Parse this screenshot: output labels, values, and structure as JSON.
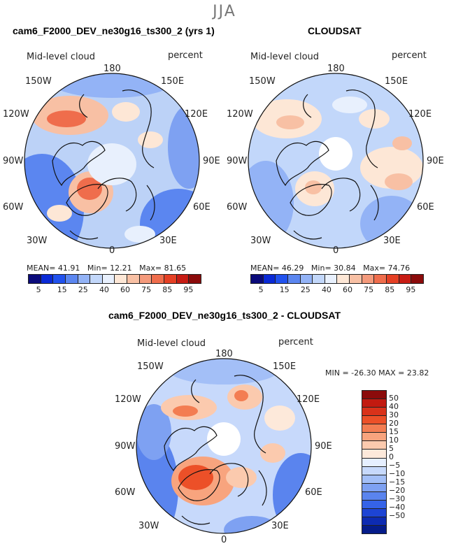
{
  "figure": {
    "season": "JJA"
  },
  "panels": [
    {
      "title": "cam6_F2000_DEV_ne30g16_ts300_2 (yrs 1)",
      "variable": "Mid-level cloud",
      "units": "percent",
      "stats": {
        "mean_label": "MEAN=",
        "mean": "41.91",
        "min_label": "Min=",
        "min": "12.21",
        "max_label": "Max=",
        "max": "81.65"
      },
      "lon_labels": {
        "n": "180",
        "nw": "150W",
        "ne": "150E",
        "wnw": "120W",
        "ene": "120E",
        "w": "90W",
        "e": "90E",
        "wsw": "60W",
        "ese": "60E",
        "sw": "30W",
        "se": "30E",
        "s": "0"
      },
      "polar_hole": false
    },
    {
      "title": "CLOUDSAT",
      "variable": "Mid-level cloud",
      "units": "percent",
      "stats": {
        "mean_label": "MEAN=",
        "mean": "46.29",
        "min_label": "Min=",
        "min": "30.84",
        "max_label": "Max=",
        "max": "74.76"
      },
      "lon_labels": {
        "n": "180",
        "nw": "150W",
        "ne": "150E",
        "wnw": "120W",
        "ene": "120E",
        "w": "90W",
        "e": "90E",
        "wsw": "60W",
        "ese": "60E",
        "sw": "30W",
        "se": "30E",
        "s": "0"
      },
      "polar_hole": true
    },
    {
      "title": "cam6_F2000_DEV_ne30g16_ts300_2 - CLOUDSAT",
      "variable": "Mid-level cloud",
      "units": "percent",
      "stats_line": "MIN = -26.30 MAX =  23.82",
      "lon_labels": {
        "n": "180",
        "nw": "150W",
        "ne": "150E",
        "wnw": "120W",
        "ene": "120E",
        "w": "90W",
        "e": "90E",
        "wsw": "60W",
        "ese": "60E",
        "sw": "30W",
        "se": "30E",
        "s": "0"
      },
      "polar_hole": true
    }
  ],
  "colorbar_abs": {
    "ticks": [
      "5",
      "15",
      "25",
      "40",
      "60",
      "75",
      "85",
      "95"
    ],
    "colors": [
      "#0a0a7a",
      "#0a2ad6",
      "#2152ee",
      "#5b86f0",
      "#93b3f6",
      "#c2d7fa",
      "#e8f0fd",
      "#fde7d6",
      "#f8c0a4",
      "#f49a7c",
      "#ef6d4c",
      "#e54024",
      "#c71c14",
      "#8b0b0b"
    ]
  },
  "colorbar_diff": {
    "ticks": [
      "50",
      "40",
      "30",
      "20",
      "15",
      "10",
      "5",
      "0",
      "−5",
      "−10",
      "−15",
      "−20",
      "−30",
      "−40",
      "−50"
    ],
    "colors_top_to_bottom": [
      "#8b0b0b",
      "#c21a10",
      "#d9321a",
      "#ec5028",
      "#f37d52",
      "#f8a47e",
      "#fbcaae",
      "#fde9da",
      "#e6efff",
      "#c7d9fb",
      "#a3bff7",
      "#7ea1f2",
      "#5a84ee",
      "#3563e8",
      "#1d44d4",
      "#0d2bb2",
      "#051c8a"
    ]
  },
  "palette": {
    "land_line": "#111111",
    "ocean_base": "#b9d0f6",
    "deep_blue": "#2a5ee6",
    "warm": "#f4a582",
    "hot": "#e0502d"
  }
}
